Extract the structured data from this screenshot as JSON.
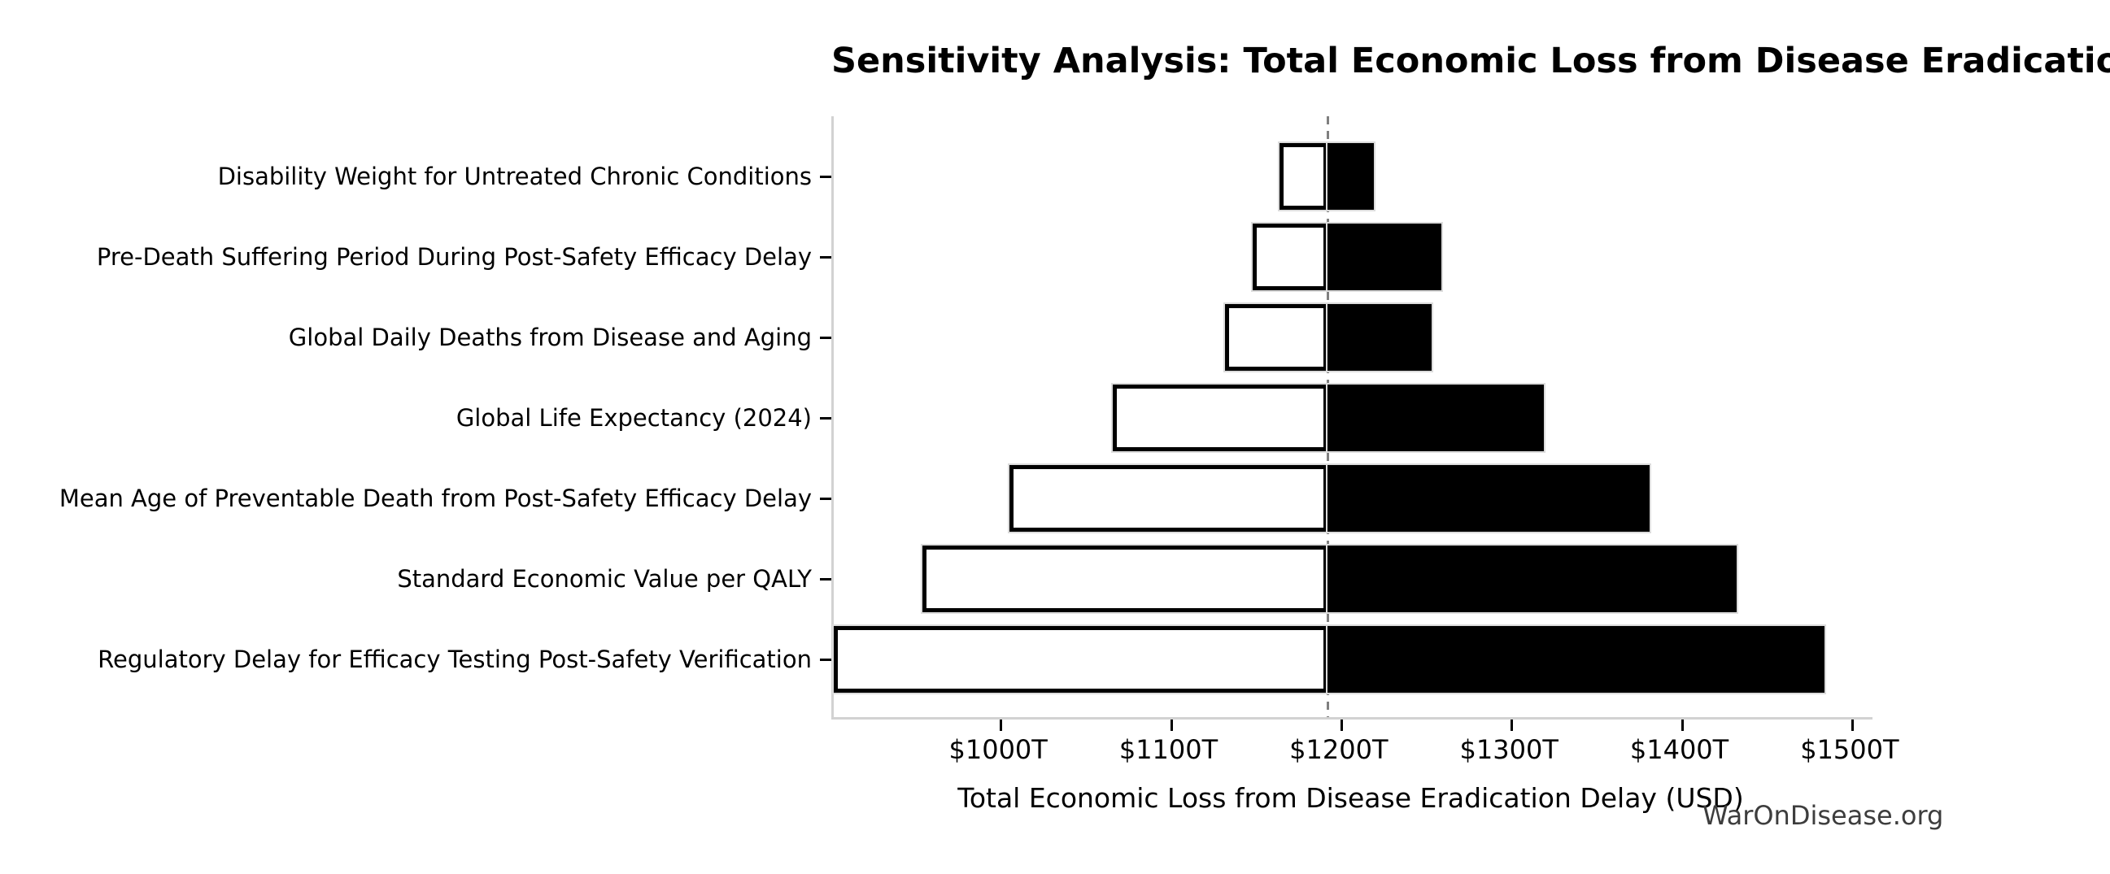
{
  "page": {
    "background": "#ffffff"
  },
  "chart_data": {
    "type": "bar",
    "variant": "tornado-sensitivity",
    "orientation": "horizontal",
    "title": "Sensitivity Analysis: Total Economic Loss from Disease Eradication Delay",
    "xlabel": "Total Economic Loss from Disease Eradication Delay (USD)",
    "ylabel": "",
    "watermark": "WarOnDisease.org",
    "unit": {
      "prefix": "$",
      "suffix": "T"
    },
    "baseline_value": 1192,
    "xlim": [
      902,
      1512
    ],
    "xticks": [
      1000,
      1100,
      1200,
      1300,
      1400,
      1500
    ],
    "xtick_labels": [
      "$1000T",
      "$1100T",
      "$1200T",
      "$1300T",
      "$1400T",
      "$1500T"
    ],
    "grid": false,
    "legend": null,
    "rows": [
      {
        "label": "Disability Weight for Untreated Chronic Conditions",
        "low": 1164,
        "high": 1219
      },
      {
        "label": "Pre-Death Suffering Period During Post-Safety Efficacy Delay",
        "low": 1148,
        "high": 1259
      },
      {
        "label": "Global Daily Deaths from Disease and Aging",
        "low": 1132,
        "high": 1253
      },
      {
        "label": "Global Life Expectancy (2024)",
        "low": 1066,
        "high": 1319
      },
      {
        "label": "Mean Age of Preventable Death from Post-Safety Efficacy Delay",
        "low": 1005,
        "high": 1381
      },
      {
        "label": "Standard Economic Value per QALY",
        "low": 954,
        "high": 1432
      },
      {
        "label": "Regulatory Delay for Efficacy Testing Post-Safety Verification",
        "low": 902,
        "high": 1484
      }
    ],
    "colors": {
      "low_bar_fill": "#ffffff",
      "low_bar_border": "#000000",
      "high_bar_fill": "#000000",
      "baseline_line": "#7f7f7f",
      "spine": "#d2d2d2",
      "tick": "#000000",
      "text": "#000000",
      "watermark": "#3d3d3d"
    }
  }
}
